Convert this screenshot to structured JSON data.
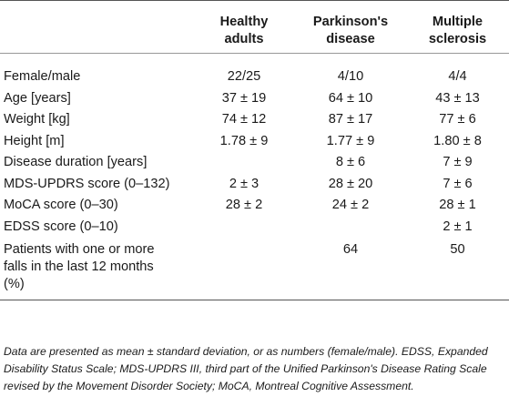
{
  "table": {
    "headers": [
      {
        "line1": "",
        "line2": ""
      },
      {
        "line1": "Healthy",
        "line2": "adults"
      },
      {
        "line1": "Parkinson's",
        "line2": "disease"
      },
      {
        "line1": "Multiple",
        "line2": "sclerosis"
      }
    ],
    "rows": [
      {
        "label": "Female/male",
        "values": [
          "22/25",
          "4/10",
          "4/4"
        ]
      },
      {
        "label": "Age [years]",
        "values": [
          "37 ± 19",
          "64 ± 10",
          "43 ± 13"
        ]
      },
      {
        "label": "Weight [kg]",
        "values": [
          "74 ± 12",
          "87 ± 17",
          "77 ± 6"
        ]
      },
      {
        "label": "Height [m]",
        "values": [
          "1.78 ± 9",
          "1.77 ± 9",
          "1.80 ± 8"
        ]
      },
      {
        "label": "Disease duration [years]",
        "values": [
          "",
          "8 ± 6",
          "7 ± 9"
        ]
      },
      {
        "label": "MDS-UPDRS score (0–132)",
        "values": [
          "2 ± 3",
          "28 ± 20",
          "7 ± 6"
        ]
      },
      {
        "label": "MoCA score (0–30)",
        "values": [
          "28 ± 2",
          "24 ± 2",
          "28 ± 1"
        ]
      },
      {
        "label": "EDSS score (0–10)",
        "values": [
          "",
          "",
          "2 ± 1"
        ]
      },
      {
        "label_lines": [
          "Patients with one or more",
          "falls in the last 12 months",
          "(%)"
        ],
        "values": [
          "",
          "64",
          "50"
        ]
      }
    ]
  },
  "footnote": "Data are presented as mean ± standard deviation, or as numbers (female/male). EDSS, Expanded Disability Status Scale; MDS-UPDRS III, third part of the Unified Parkinson's Disease Rating Scale revised by the Movement Disorder Society; MoCA, Montreal Cognitive Assessment."
}
